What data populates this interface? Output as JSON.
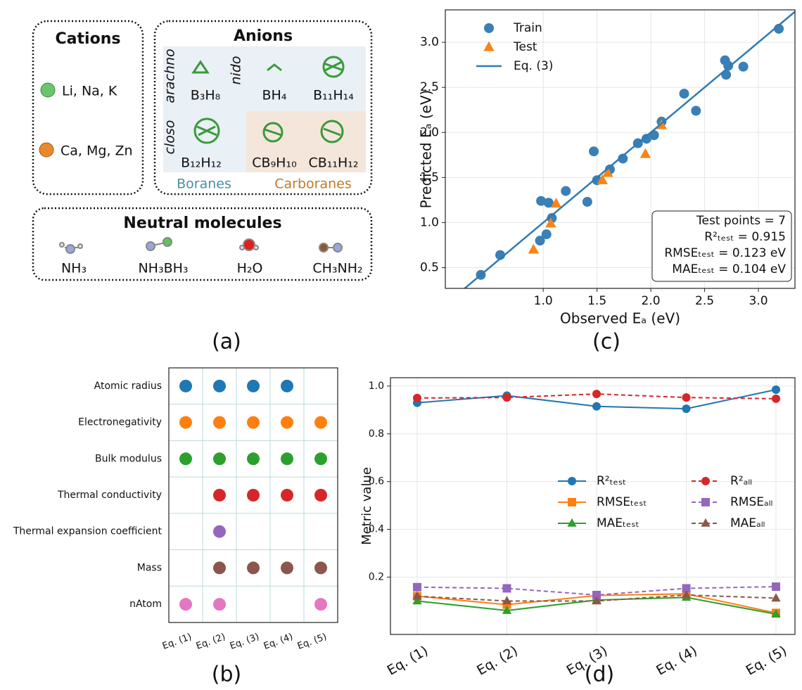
{
  "panel_a": {
    "label": "(a)",
    "cations": {
      "title": "Cations",
      "groups": [
        "Li, Na, K",
        "Ca, Mg, Zn"
      ]
    },
    "anions": {
      "title": "Anions",
      "classes": [
        "arachno",
        "nido",
        "closo"
      ],
      "species": [
        "B₃H₈",
        "BH₄",
        "B₁₁H₁₄",
        "B₁₂H₁₂",
        "CB₉H₁₀",
        "CB₁₁H₁₂"
      ],
      "families": [
        "Boranes",
        "Carboranes"
      ]
    },
    "neutral_molecules": {
      "title": "Neutral molecules",
      "species": [
        "NH₃",
        "NH₃BH₃",
        "H₂O",
        "CH₃NH₂"
      ]
    }
  },
  "chart_data": [
    {
      "type": "scatter",
      "panel_label": "(c)",
      "x_label": "Observed Eₐ (eV)",
      "y_label": "Predicted Eₐ (eV)",
      "xlim": [
        0.09,
        3.34
      ],
      "ylim": [
        0.27,
        3.36
      ],
      "xticks": [
        {
          "value": 1,
          "label": "1.0"
        },
        1.5,
        {
          "value": 2,
          "label": "2.0"
        },
        2.5,
        {
          "value": 3,
          "label": "3.0"
        }
      ],
      "yticks": [
        0.5,
        {
          "value": 1,
          "label": "1.0"
        },
        1.5,
        {
          "value": 2,
          "label": "2.0"
        },
        2.5,
        {
          "value": 3,
          "label": "3.0"
        }
      ],
      "grid": true,
      "legend": "upper left",
      "annotations": [
        "Test points = 7",
        "R²ₜₑₛₜ = 0.915",
        "RMSEₜₑₛₜ = 0.123 eV",
        "MAEₜₑₛₜ = 0.104 eV"
      ],
      "series": [
        {
          "name": "Train",
          "color": "#3a7fb6",
          "marker": "circle",
          "x": [
            0.42,
            0.6,
            0.97,
            0.98,
            1.03,
            1.05,
            1.08,
            1.21,
            1.41,
            1.47,
            1.5,
            1.62,
            1.74,
            1.88,
            1.96,
            2.03,
            2.1,
            2.31,
            2.42,
            2.69,
            2.7,
            2.72,
            2.86,
            3.19
          ],
          "values": [
            0.42,
            0.64,
            0.8,
            1.24,
            0.87,
            1.22,
            1.05,
            1.35,
            1.23,
            1.79,
            1.47,
            1.59,
            1.71,
            1.88,
            1.93,
            1.97,
            2.12,
            2.43,
            2.24,
            2.8,
            2.64,
            2.74,
            2.73,
            3.15
          ]
        },
        {
          "name": "Test",
          "color": "#f58518",
          "marker": "triangle",
          "x": [
            0.91,
            1.07,
            1.12,
            1.55,
            1.6,
            1.95,
            2.1
          ],
          "values": [
            0.7,
            0.99,
            1.21,
            1.47,
            1.55,
            1.76,
            2.08
          ]
        },
        {
          "name": "Eq. (3)",
          "color": "#2e7bb4",
          "marker": "line",
          "x": [
            0.27,
            3.34
          ],
          "values": [
            0.27,
            3.34
          ]
        }
      ]
    },
    {
      "type": "dot-matrix",
      "panel_label": "(b)",
      "categories": [
        "Eq. (1)",
        "Eq. (2)",
        "Eq. (3)",
        "Eq. (4)",
        "Eq. (5)"
      ],
      "series": [
        {
          "name": "Atomic radius",
          "color": "#1f77b4",
          "values": [
            1,
            1,
            1,
            1,
            null
          ]
        },
        {
          "name": "Electronegativity",
          "color": "#ff7f0e",
          "values": [
            1,
            1,
            1,
            1,
            1
          ]
        },
        {
          "name": "Bulk modulus",
          "color": "#2ca02c",
          "values": [
            1,
            1,
            1,
            1,
            1
          ]
        },
        {
          "name": "Thermal conductivity",
          "color": "#d62728",
          "values": [
            null,
            1,
            1,
            1,
            1
          ]
        },
        {
          "name": "Thermal expansion coefficient",
          "color": "#9467bd",
          "values": [
            null,
            1,
            null,
            null,
            null
          ]
        },
        {
          "name": "Mass",
          "color": "#8c564b",
          "values": [
            null,
            1,
            1,
            1,
            1
          ]
        },
        {
          "name": "nAtom",
          "color": "#e377c2",
          "values": [
            1,
            1,
            null,
            null,
            1
          ]
        }
      ]
    },
    {
      "type": "line",
      "panel_label": "(d)",
      "y_label": "Metric value",
      "categories": [
        "Eq. (1)",
        "Eq. (2)",
        "Eq. (3)",
        "Eq. (4)",
        "Eq. (5)"
      ],
      "ylim": [
        -0.04,
        1.035
      ],
      "yticks": [
        0.2,
        0.4,
        0.6,
        0.8,
        {
          "value": 1,
          "label": "1.0"
        }
      ],
      "grid": true,
      "legend": "center",
      "series": [
        {
          "name": "R²ₜₑₛₜ",
          "color": "#1f77b4",
          "marker": "circle",
          "dashed": false,
          "values": [
            0.93,
            0.96,
            0.915,
            0.905,
            0.985
          ]
        },
        {
          "name": "RMSEₜₑₛₜ",
          "color": "#ff7f0e",
          "marker": "square",
          "dashed": false,
          "values": [
            0.12,
            0.085,
            0.123,
            0.13,
            0.05
          ]
        },
        {
          "name": "MAEₜₑₛₜ",
          "color": "#2ca02c",
          "marker": "triangle",
          "dashed": false,
          "values": [
            0.1,
            0.06,
            0.104,
            0.115,
            0.045
          ]
        },
        {
          "name": "R²ₐₗₗ",
          "color": "#d62728",
          "marker": "circle",
          "dashed": true,
          "values": [
            0.95,
            0.952,
            0.967,
            0.952,
            0.947
          ]
        },
        {
          "name": "RMSEₐₗₗ",
          "color": "#9467bd",
          "marker": "square",
          "dashed": true,
          "values": [
            0.158,
            0.153,
            0.125,
            0.153,
            0.16
          ]
        },
        {
          "name": "MAEₐₗₗ",
          "color": "#8c564b",
          "marker": "triangle",
          "dashed": true,
          "values": [
            0.12,
            0.1,
            0.1,
            0.125,
            0.112
          ]
        }
      ]
    }
  ]
}
